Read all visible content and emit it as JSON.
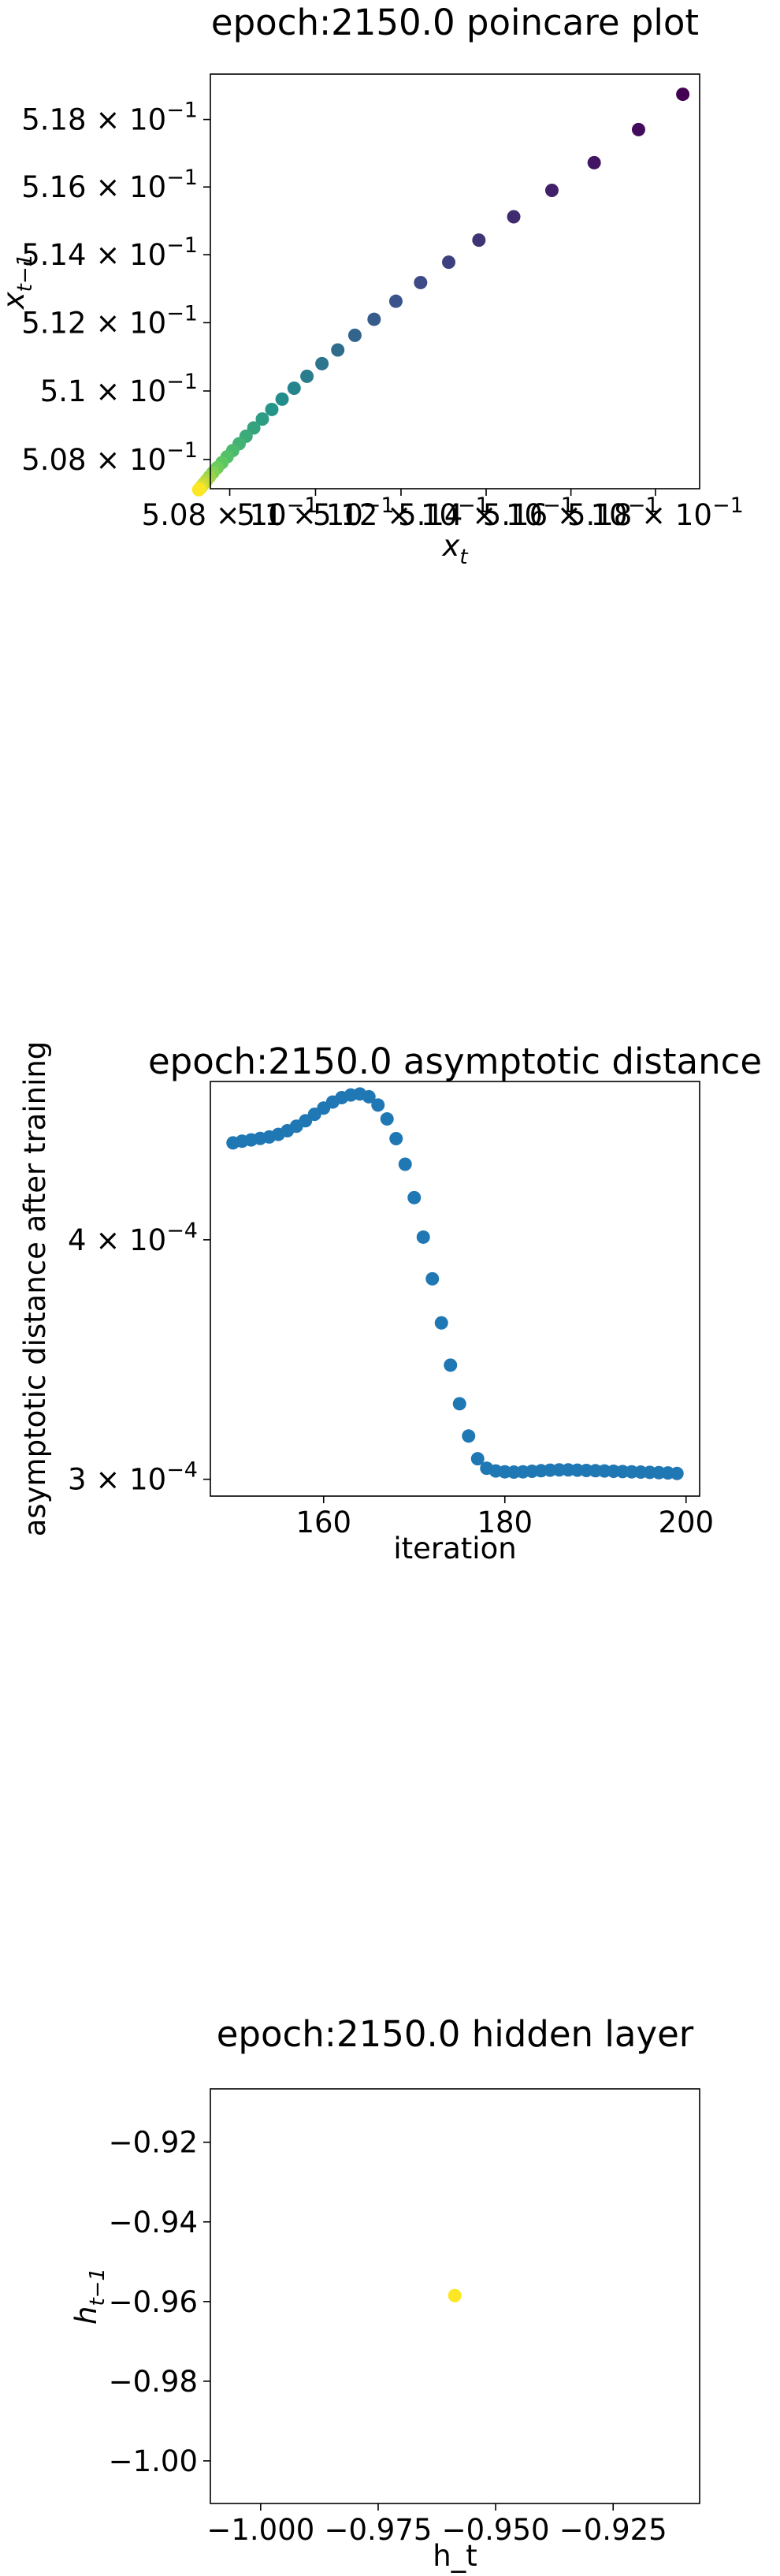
{
  "chart_data": [
    {
      "type": "scatter",
      "title": "epoch:2150.0 poincare plot",
      "xlabel": "x_t",
      "ylabel": "x_{t-1}",
      "scale": "log",
      "xlim": [
        0.50755,
        0.51905
      ],
      "ylim": [
        0.50715,
        0.51935
      ],
      "x_ticks": [
        {
          "v": 0.508,
          "label": "5.08 × 10^-1"
        },
        {
          "v": 0.51,
          "label": "5.1 × 10^-1"
        },
        {
          "v": 0.512,
          "label": "5.12 × 10^-1"
        },
        {
          "v": 0.514,
          "label": "5.14 × 10^-1"
        },
        {
          "v": 0.516,
          "label": "5.16 × 10^-1"
        },
        {
          "v": 0.518,
          "label": "5.18 × 10^-1"
        }
      ],
      "y_ticks": [
        {
          "v": 0.508,
          "label": "5.08 × 10^-1"
        },
        {
          "v": 0.51,
          "label": "5.1 × 10^-1"
        },
        {
          "v": 0.512,
          "label": "5.12 × 10^-1"
        },
        {
          "v": 0.514,
          "label": "5.14 × 10^-1"
        },
        {
          "v": 0.516,
          "label": "5.16 × 10^-1"
        },
        {
          "v": 0.518,
          "label": "5.18 × 10^-1"
        }
      ],
      "colormap": [
        "#440154",
        "#3b528b",
        "#21918c",
        "#5ec962",
        "#fde725"
      ],
      "points": [
        [
          0.51865,
          0.51875
        ],
        [
          0.5176,
          0.5177
        ],
        [
          0.51655,
          0.51672
        ],
        [
          0.51555,
          0.5159
        ],
        [
          0.51465,
          0.51512
        ],
        [
          0.51383,
          0.51443
        ],
        [
          0.51312,
          0.51378
        ],
        [
          0.51246,
          0.51318
        ],
        [
          0.51188,
          0.51263
        ],
        [
          0.51137,
          0.5121
        ],
        [
          0.51092,
          0.51163
        ],
        [
          0.51052,
          0.5112
        ],
        [
          0.51015,
          0.5108
        ],
        [
          0.5098,
          0.51043
        ],
        [
          0.5095,
          0.51008
        ],
        [
          0.50922,
          0.50976
        ],
        [
          0.50898,
          0.50946
        ],
        [
          0.50876,
          0.50918
        ],
        [
          0.50856,
          0.50892
        ],
        [
          0.50838,
          0.50868
        ],
        [
          0.50822,
          0.50846
        ],
        [
          0.50807,
          0.50826
        ],
        [
          0.50794,
          0.50808
        ],
        [
          0.50782,
          0.50791
        ],
        [
          0.50771,
          0.50776
        ],
        [
          0.50761,
          0.50762
        ],
        [
          0.50753,
          0.5075
        ],
        [
          0.50746,
          0.50739
        ],
        [
          0.5074,
          0.5073
        ],
        [
          0.50735,
          0.50722
        ],
        [
          0.50731,
          0.50716
        ],
        [
          0.50728,
          0.50712
        ]
      ]
    },
    {
      "type": "scatter",
      "title": "epoch:2150.0 asymptotic distance",
      "xlabel": "iteration",
      "ylabel": "asymptotic distance after training",
      "yscale": "log",
      "xlim": [
        147.5,
        201.5
      ],
      "ylim": [
        0.000294,
        0.0004838
      ],
      "x_ticks": [
        {
          "v": 160,
          "label": "160"
        },
        {
          "v": 180,
          "label": "180"
        },
        {
          "v": 200,
          "label": "200"
        }
      ],
      "y_ticks": [
        {
          "v": 0.0003,
          "label": "3 × 10^-4"
        },
        {
          "v": 0.0004,
          "label": "4 × 10^-4"
        }
      ],
      "color": "#1f77b4",
      "x": [
        150,
        151,
        152,
        153,
        154,
        155,
        156,
        157,
        158,
        159,
        160,
        161,
        162,
        163,
        164,
        165,
        166,
        167,
        168,
        169,
        170,
        171,
        172,
        173,
        174,
        175,
        176,
        177,
        178,
        179,
        180,
        181,
        182,
        183,
        184,
        185,
        186,
        187,
        188,
        189,
        190,
        191,
        192,
        193,
        194,
        195,
        196,
        197,
        198,
        199
      ],
      "y": [
        0.0004494,
        0.0004503,
        0.000451,
        0.0004518,
        0.0004526,
        0.000454,
        0.000456,
        0.0004585,
        0.0004615,
        0.0004651,
        0.0004686,
        0.000472,
        0.0004745,
        0.000476,
        0.0004766,
        0.000475,
        0.0004703,
        0.0004625,
        0.0004517,
        0.000438,
        0.0004208,
        0.0004013,
        0.0003817,
        0.000362,
        0.0003441,
        0.0003285,
        0.000316,
        0.0003075,
        0.000304,
        0.000303,
        0.0003027,
        0.0003026,
        0.0003027,
        0.0003029,
        0.0003031,
        0.0003033,
        0.0003034,
        0.0003034,
        0.0003033,
        0.0003032,
        0.0003031,
        0.000303,
        0.0003029,
        0.0003028,
        0.0003027,
        0.0003026,
        0.0003025,
        0.0003024,
        0.0003023,
        0.0003021
      ]
    },
    {
      "type": "scatter",
      "title": "epoch:2150.0 hidden layer",
      "xlabel": "h_t",
      "ylabel": "h_{t-1}",
      "xlim": [
        -1.0107,
        -0.9066
      ],
      "ylim": [
        -1.0107,
        -0.9066
      ],
      "x_ticks": [
        {
          "v": -1.0,
          "label": "−1.000"
        },
        {
          "v": -0.975,
          "label": "−0.975"
        },
        {
          "v": -0.95,
          "label": "−0.950"
        },
        {
          "v": -0.925,
          "label": "−0.925"
        }
      ],
      "y_ticks": [
        {
          "v": -0.92,
          "label": "−0.92"
        },
        {
          "v": -0.94,
          "label": "−0.94"
        },
        {
          "v": -0.96,
          "label": "−0.96"
        },
        {
          "v": -0.98,
          "label": "−0.98"
        },
        {
          "v": -1.0,
          "label": "−1.00"
        }
      ],
      "color": "#fde725",
      "points": [
        [
          -0.9587,
          -0.9585
        ]
      ]
    }
  ]
}
